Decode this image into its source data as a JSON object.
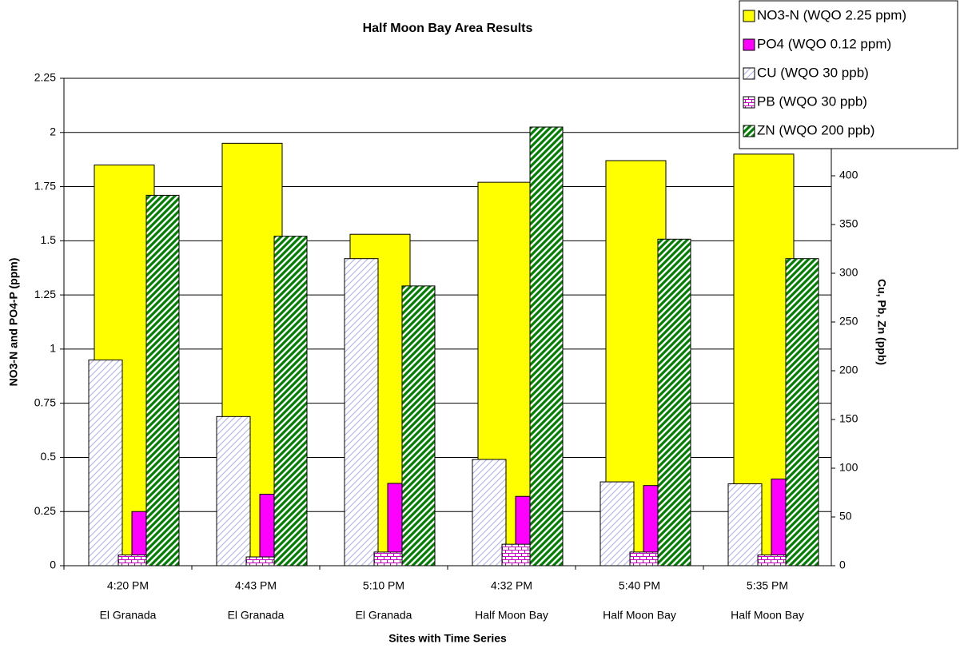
{
  "chart_data": {
    "type": "bar",
    "title": "Half Moon Bay Area Results",
    "x_label": "Sites with Time Series",
    "y_label": "NO3-N and PO4-P (ppm)",
    "y2_label": "Cu, Pb, Zn (ppb)",
    "categories": [
      "4:20 PM",
      "4:43 PM",
      "5:10 PM",
      "4:32 PM",
      "5:40 PM",
      "5:35 PM"
    ],
    "groups": [
      "El Granada",
      "El Granada",
      "El Granada",
      "Half Moon Bay",
      "Half Moon Bay",
      "Half Moon Bay"
    ],
    "ylim": [
      0,
      2.25
    ],
    "yticks": [
      0,
      0.25,
      0.5,
      0.75,
      1,
      1.25,
      1.5,
      1.75,
      2,
      2.25
    ],
    "y2lim": [
      0,
      500
    ],
    "y2ticks": [
      0,
      50,
      100,
      150,
      200,
      250,
      300,
      350,
      400
    ],
    "grid": true,
    "legend": "upper right",
    "series": [
      {
        "name": "NO3-N (WQO 2.25 ppm)",
        "color": "#ffff00",
        "fill": "solid",
        "values": [
          1.85,
          1.95,
          1.53,
          1.77,
          1.87,
          1.9
        ]
      },
      {
        "name": "PO4 (WQO 0.12 ppm)",
        "color": "#ff00ff",
        "fill": "solid",
        "values": [
          0.25,
          0.33,
          0.38,
          0.32,
          0.37,
          0.4
        ]
      },
      {
        "name": "CU (WQO 30 ppb)",
        "color": "#b8b8ee",
        "fill": "hatch",
        "axis": "y2",
        "values": [
          211,
          153,
          315,
          109,
          86,
          84
        ]
      },
      {
        "name": "PB (WQO 30 ppb)",
        "color": "#cc00cc",
        "fill": "brick",
        "axis": "y2",
        "values": [
          11,
          9,
          14,
          22,
          14,
          11
        ]
      },
      {
        "name": "ZN (WQO 200 ppb)",
        "color": "#008000",
        "fill": "stripe",
        "axis": "y2",
        "values": [
          380,
          338,
          287,
          450,
          335,
          315
        ]
      }
    ]
  }
}
